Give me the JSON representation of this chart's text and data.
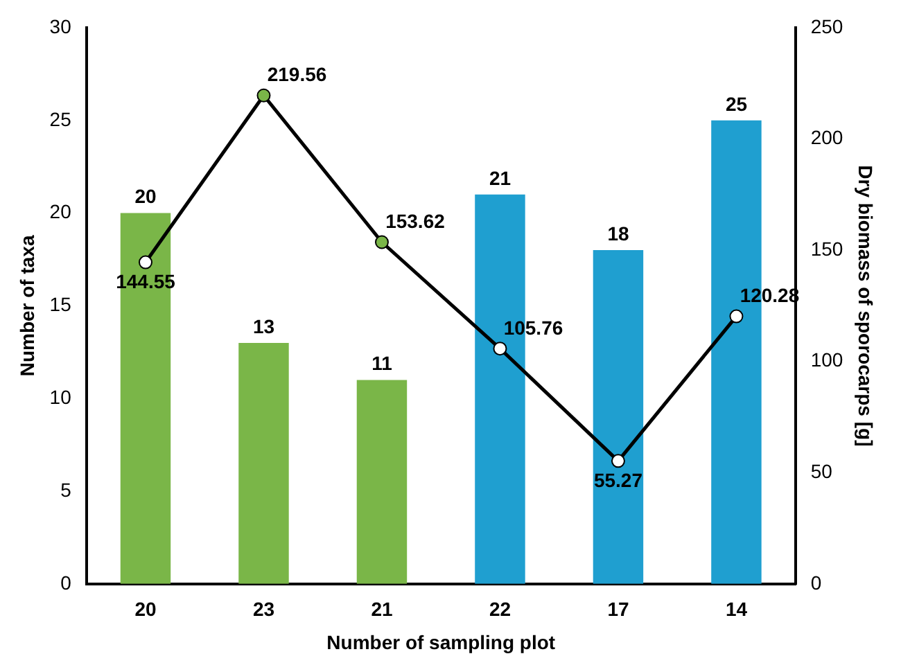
{
  "chart_data": {
    "type": "bar",
    "xlabel": "Number of sampling plot",
    "ylabel": "Number of taxa",
    "y2label": "Dry biomass of sporocarps [g]",
    "categories": [
      "20",
      "23",
      "21",
      "22",
      "17",
      "14"
    ],
    "series": [
      {
        "colors": [
          "#7ab648",
          "#7ab648",
          "#7ab648",
          "#1f9fd0",
          "#1f9fd0",
          "#1f9fd0"
        ],
        "values": [
          20,
          13,
          11,
          21,
          18,
          25
        ]
      },
      {
        "type": "line",
        "axis": "y2",
        "color": "#000000",
        "colors": [
          "#ffffff",
          "#7ab648",
          "#7ab648",
          "#ffffff",
          "#ffffff",
          "#ffffff"
        ],
        "values": [
          144.55,
          219.56,
          153.62,
          105.76,
          55.27,
          120.28
        ]
      }
    ],
    "ylim": [
      0,
      30
    ],
    "yticks": [
      0,
      5,
      10,
      15,
      20,
      25,
      30
    ],
    "y2lim": [
      0,
      250
    ],
    "y2ticks": [
      0,
      50,
      100,
      150,
      200,
      250
    ],
    "data_labels": true,
    "grid": false,
    "legend": false,
    "marker": "circle",
    "line_style": "solid"
  }
}
